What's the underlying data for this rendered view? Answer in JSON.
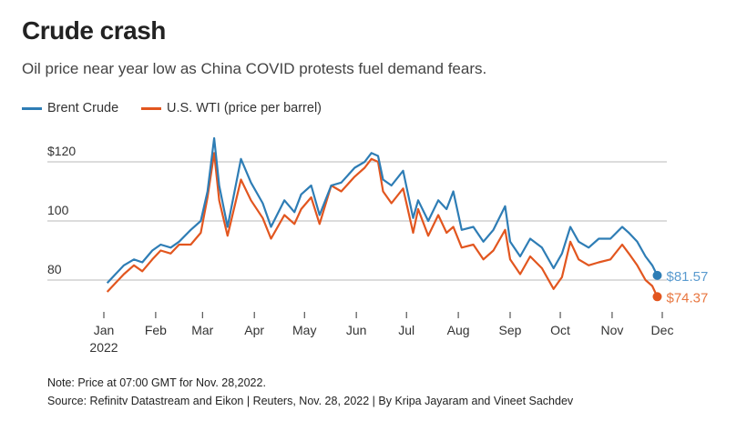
{
  "chart_data": {
    "type": "line",
    "title": "Crude crash",
    "subtitle": "Oil price near year low as China COVID protests fuel demand fears.",
    "xlabel": "",
    "ylabel": "",
    "ylim": [
      70,
      130
    ],
    "y_ticks": [
      {
        "value": 120,
        "label": "$120"
      },
      {
        "value": 100,
        "label": "100"
      },
      {
        "value": 80,
        "label": "80"
      }
    ],
    "x_ticks": [
      {
        "date": "2022-01-01",
        "label": "Jan",
        "sublabel": "2022"
      },
      {
        "date": "2022-02-01",
        "label": "Feb"
      },
      {
        "date": "2022-03-01",
        "label": "Mar"
      },
      {
        "date": "2022-04-01",
        "label": "Apr"
      },
      {
        "date": "2022-05-01",
        "label": "May"
      },
      {
        "date": "2022-06-01",
        "label": "Jun"
      },
      {
        "date": "2022-07-01",
        "label": "Jul"
      },
      {
        "date": "2022-08-01",
        "label": "Aug"
      },
      {
        "date": "2022-09-01",
        "label": "Sep"
      },
      {
        "date": "2022-10-01",
        "label": "Oct"
      },
      {
        "date": "2022-11-01",
        "label": "Nov"
      },
      {
        "date": "2022-12-01",
        "label": "Dec"
      }
    ],
    "xlim": [
      "2022-01-01",
      "2022-12-01"
    ],
    "grid": "horizontal",
    "legend_position": "top-left",
    "x": [
      "2022-01-03",
      "2022-01-08",
      "2022-01-13",
      "2022-01-19",
      "2022-01-24",
      "2022-01-30",
      "2022-02-04",
      "2022-02-10",
      "2022-02-15",
      "2022-02-22",
      "2022-02-28",
      "2022-03-04",
      "2022-03-08",
      "2022-03-11",
      "2022-03-16",
      "2022-03-24",
      "2022-03-30",
      "2022-04-06",
      "2022-04-11",
      "2022-04-19",
      "2022-04-25",
      "2022-04-29",
      "2022-05-05",
      "2022-05-10",
      "2022-05-17",
      "2022-05-23",
      "2022-05-31",
      "2022-06-06",
      "2022-06-10",
      "2022-06-14",
      "2022-06-17",
      "2022-06-22",
      "2022-06-29",
      "2022-07-05",
      "2022-07-08",
      "2022-07-14",
      "2022-07-20",
      "2022-07-25",
      "2022-07-29",
      "2022-08-03",
      "2022-08-10",
      "2022-08-16",
      "2022-08-22",
      "2022-08-29",
      "2022-09-01",
      "2022-09-07",
      "2022-09-13",
      "2022-09-20",
      "2022-09-27",
      "2022-10-02",
      "2022-10-07",
      "2022-10-12",
      "2022-10-18",
      "2022-10-24",
      "2022-10-31",
      "2022-11-07",
      "2022-11-11",
      "2022-11-16",
      "2022-11-21",
      "2022-11-25",
      "2022-11-28"
    ],
    "series": [
      {
        "name": "Brent Crude",
        "color": "#2e7db5",
        "end_label": "$81.57",
        "values": [
          79,
          82,
          85,
          87,
          86,
          90,
          92,
          91,
          93,
          97,
          100,
          110,
          128,
          112,
          98,
          121,
          113,
          106,
          98,
          107,
          103,
          109,
          112,
          102,
          112,
          113,
          118,
          120,
          123,
          122,
          114,
          112,
          117,
          101,
          107,
          100,
          107,
          104,
          110,
          97,
          98,
          93,
          97,
          105,
          93,
          88,
          94,
          91,
          84,
          89,
          98,
          93,
          91,
          94,
          94,
          98,
          96,
          93,
          88,
          85,
          81.57
        ]
      },
      {
        "name": "U.S. WTI (price per barrel)",
        "color": "#e2561f",
        "end_label": "$74.37",
        "values": [
          76,
          79,
          82,
          85,
          83,
          87,
          90,
          89,
          92,
          92,
          96,
          108,
          123,
          107,
          95,
          114,
          107,
          101,
          94,
          102,
          99,
          104,
          108,
          99,
          112,
          110,
          115,
          118,
          121,
          120,
          110,
          106,
          111,
          96,
          104,
          95,
          102,
          96,
          98,
          91,
          92,
          87,
          90,
          97,
          87,
          82,
          88,
          84,
          77,
          81,
          93,
          87,
          85,
          86,
          87,
          92,
          89,
          85,
          80,
          78,
          74.37
        ]
      }
    ],
    "end_label_colors": {
      "Brent Crude": "#5a9bcf",
      "U.S. WTI (price per barrel)": "#e8763f"
    }
  },
  "notes": {
    "note": "Note: Price at 07:00 GMT for Nov. 28,2022.",
    "source": "Source: Refinitv Datastream and Eikon | Reuters, Nov. 28, 2022 | By Kripa Jayaram and Vineet Sachdev"
  }
}
